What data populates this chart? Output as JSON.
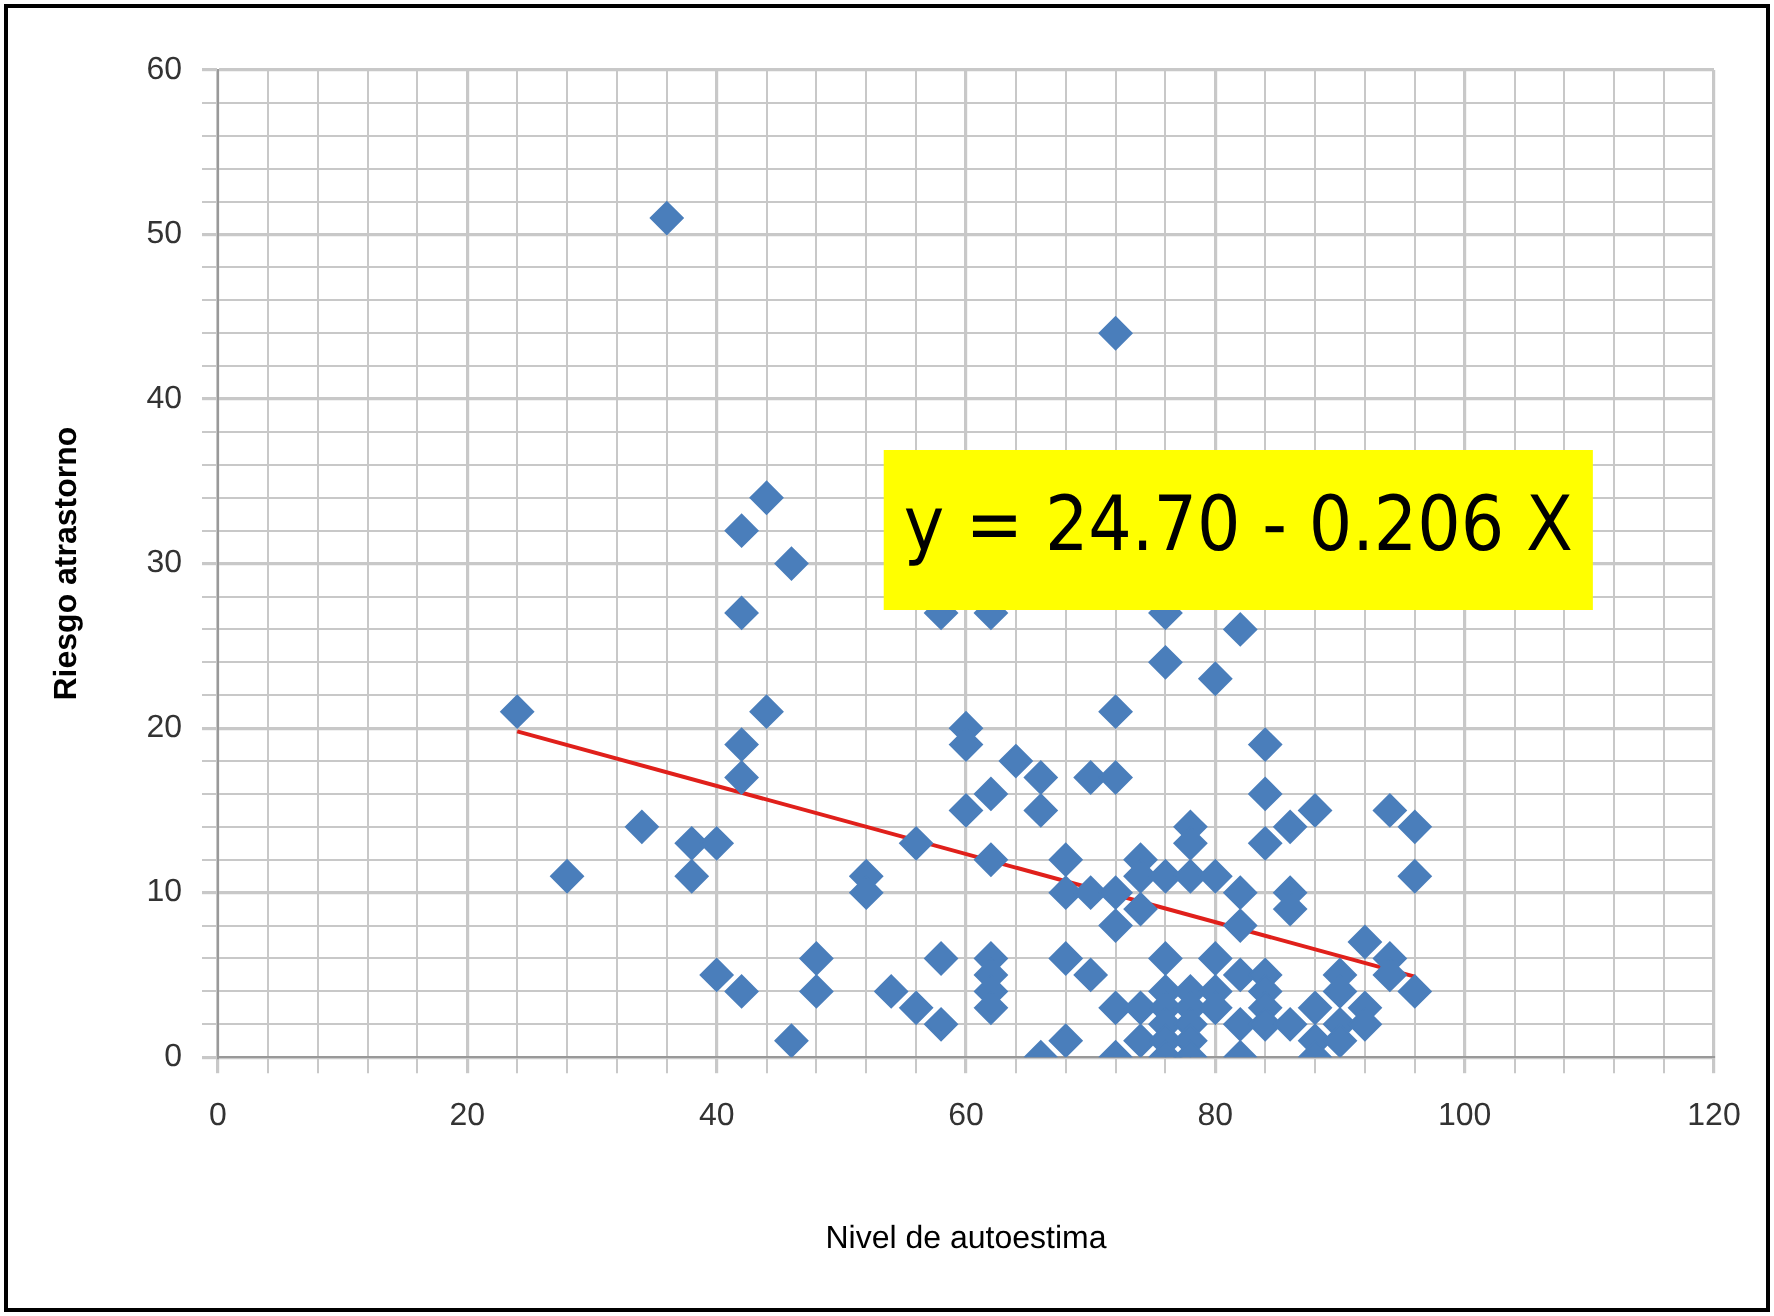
{
  "chart_data": {
    "type": "scatter",
    "xlabel": "Nivel de autoestima",
    "ylabel": "Riesgo atrastorno",
    "annotations": [
      "y = 24.70 - 0.206 X"
    ],
    "xlim": [
      0,
      120
    ],
    "ylim": [
      0,
      60
    ],
    "xticks": [
      0,
      {
        "value": 4,
        "label": null
      },
      {
        "value": 8,
        "label": null
      },
      {
        "value": 12,
        "label": null
      },
      {
        "value": 16,
        "label": null
      },
      20,
      {
        "value": 24,
        "label": null
      },
      {
        "value": 28,
        "label": null
      },
      {
        "value": 32,
        "label": null
      },
      {
        "value": 36,
        "label": null
      },
      40,
      {
        "value": 44,
        "label": null
      },
      {
        "value": 48,
        "label": null
      },
      {
        "value": 52,
        "label": null
      },
      {
        "value": 56,
        "label": null
      },
      60,
      {
        "value": 64,
        "label": null
      },
      {
        "value": 68,
        "label": null
      },
      {
        "value": 72,
        "label": null
      },
      {
        "value": 76,
        "label": null
      },
      80,
      {
        "value": 84,
        "label": null
      },
      {
        "value": 88,
        "label": null
      },
      {
        "value": 92,
        "label": null
      },
      {
        "value": 96,
        "label": null
      },
      100,
      {
        "value": 104,
        "label": null
      },
      {
        "value": 108,
        "label": null
      },
      {
        "value": 112,
        "label": null
      },
      {
        "value": 116,
        "label": null
      },
      120
    ],
    "yticks": [
      0,
      {
        "value": 2,
        "label": null
      },
      {
        "value": 4,
        "label": null
      },
      {
        "value": 6,
        "label": null
      },
      {
        "value": 8,
        "label": null
      },
      10,
      {
        "value": 12,
        "label": null
      },
      {
        "value": 14,
        "label": null
      },
      {
        "value": 16,
        "label": null
      },
      {
        "value": 18,
        "label": null
      },
      20,
      {
        "value": 22,
        "label": null
      },
      {
        "value": 24,
        "label": null
      },
      {
        "value": 26,
        "label": null
      },
      {
        "value": 28,
        "label": null
      },
      30,
      {
        "value": 32,
        "label": null
      },
      {
        "value": 34,
        "label": null
      },
      {
        "value": 36,
        "label": null
      },
      {
        "value": 38,
        "label": null
      },
      40,
      {
        "value": 42,
        "label": null
      },
      {
        "value": 44,
        "label": null
      },
      {
        "value": 46,
        "label": null
      },
      {
        "value": 48,
        "label": null
      },
      50,
      {
        "value": 52,
        "label": null
      },
      {
        "value": 54,
        "label": null
      },
      {
        "value": 56,
        "label": null
      },
      {
        "value": 58,
        "label": null
      },
      60
    ],
    "grid": true,
    "legend": false,
    "marker": "diamond",
    "series": [
      {
        "color": "#4a7ebb",
        "x": [
          24,
          28,
          34,
          36,
          38,
          38,
          40,
          40,
          42,
          42,
          42,
          42,
          42,
          44,
          44,
          46,
          46,
          48,
          48,
          52,
          52,
          54,
          56,
          56,
          58,
          58,
          58,
          60,
          60,
          60,
          62,
          62,
          62,
          62,
          62,
          62,
          62,
          64,
          66,
          66,
          66,
          68,
          68,
          68,
          68,
          70,
          70,
          70,
          72,
          72,
          72,
          72,
          72,
          72,
          72,
          74,
          74,
          74,
          74,
          74,
          76,
          76,
          76,
          76,
          76,
          76,
          76,
          76,
          76,
          78,
          78,
          78,
          78,
          78,
          78,
          78,
          78,
          80,
          80,
          80,
          80,
          80,
          82,
          82,
          82,
          82,
          82,
          82,
          84,
          84,
          84,
          84,
          84,
          84,
          84,
          86,
          86,
          86,
          86,
          88,
          88,
          88,
          88,
          90,
          90,
          90,
          90,
          92,
          92,
          92,
          94,
          94,
          94,
          96,
          96,
          96
        ],
        "values": [
          21,
          11,
          14,
          51,
          13,
          11,
          13,
          5,
          32,
          27,
          19,
          17,
          4,
          34,
          21,
          30,
          1,
          6,
          4,
          11,
          10,
          4,
          13,
          3,
          6,
          2,
          27,
          20,
          19,
          15,
          16,
          12,
          6,
          5,
          4,
          3,
          27,
          18,
          17,
          15,
          0,
          12,
          10,
          6,
          1,
          17,
          10,
          5,
          44,
          21,
          17,
          10,
          8,
          3,
          0,
          12,
          11,
          9,
          3,
          1,
          27,
          24,
          11,
          6,
          4,
          3,
          2,
          1,
          0,
          14,
          13,
          11,
          4,
          3,
          2,
          1,
          0,
          23,
          11,
          6,
          4,
          3,
          26,
          10,
          8,
          5,
          2,
          0,
          19,
          16,
          13,
          5,
          4,
          3,
          2,
          14,
          10,
          9,
          2,
          15,
          3,
          1,
          0,
          5,
          4,
          2,
          1,
          7,
          3,
          2,
          15,
          6,
          5,
          14,
          11,
          4
        ]
      },
      {
        "type": "line",
        "color": "#e0201b",
        "marker": "none",
        "x": [
          24,
          96
        ],
        "values": [
          19.8,
          4.9
        ]
      }
    ]
  }
}
